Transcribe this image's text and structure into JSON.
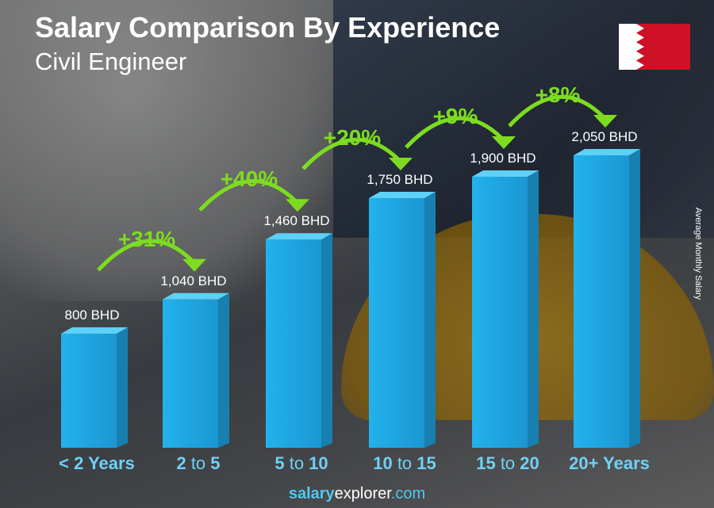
{
  "title": "Salary Comparison By Experience",
  "subtitle": "Civil Engineer",
  "flag": "bahrain-flag",
  "footer": {
    "brand_bold": "salary",
    "brand_rest": "explorer",
    ".com": ".com",
    "tld": ".com"
  },
  "colors": {
    "bar": "#1fa6e0",
    "bar_side": "#1780b0",
    "bar_top": "#5fd0f6",
    "arrow": "#7ddc1f",
    "label": "#6fd1f5"
  },
  "chart_data": {
    "type": "bar",
    "title": "Salary Comparison By Experience",
    "subtitle": "Civil Engineer",
    "ylabel": "Average Monthly Salary",
    "unit": "BHD",
    "categories": [
      "< 2 Years",
      "2 to 5",
      "5 to 10",
      "10 to 15",
      "15 to 20",
      "20+ Years"
    ],
    "category_parts": [
      [
        "<",
        "2 Years",
        ""
      ],
      [
        "2",
        " to ",
        "5"
      ],
      [
        "5",
        " to ",
        "10"
      ],
      [
        "10",
        " to ",
        "15"
      ],
      [
        "15",
        " to ",
        "20"
      ],
      [
        "20+ Years",
        "",
        ""
      ]
    ],
    "values": [
      800,
      1040,
      1460,
      1750,
      1900,
      2050
    ],
    "value_labels": [
      "800 BHD",
      "1,040 BHD",
      "1,460 BHD",
      "1,750 BHD",
      "1,900 BHD",
      "2,050 BHD"
    ],
    "changes": [
      "+31%",
      "+40%",
      "+20%",
      "+9%",
      "+8%"
    ],
    "ylim": [
      0,
      2050
    ],
    "grid": false
  }
}
